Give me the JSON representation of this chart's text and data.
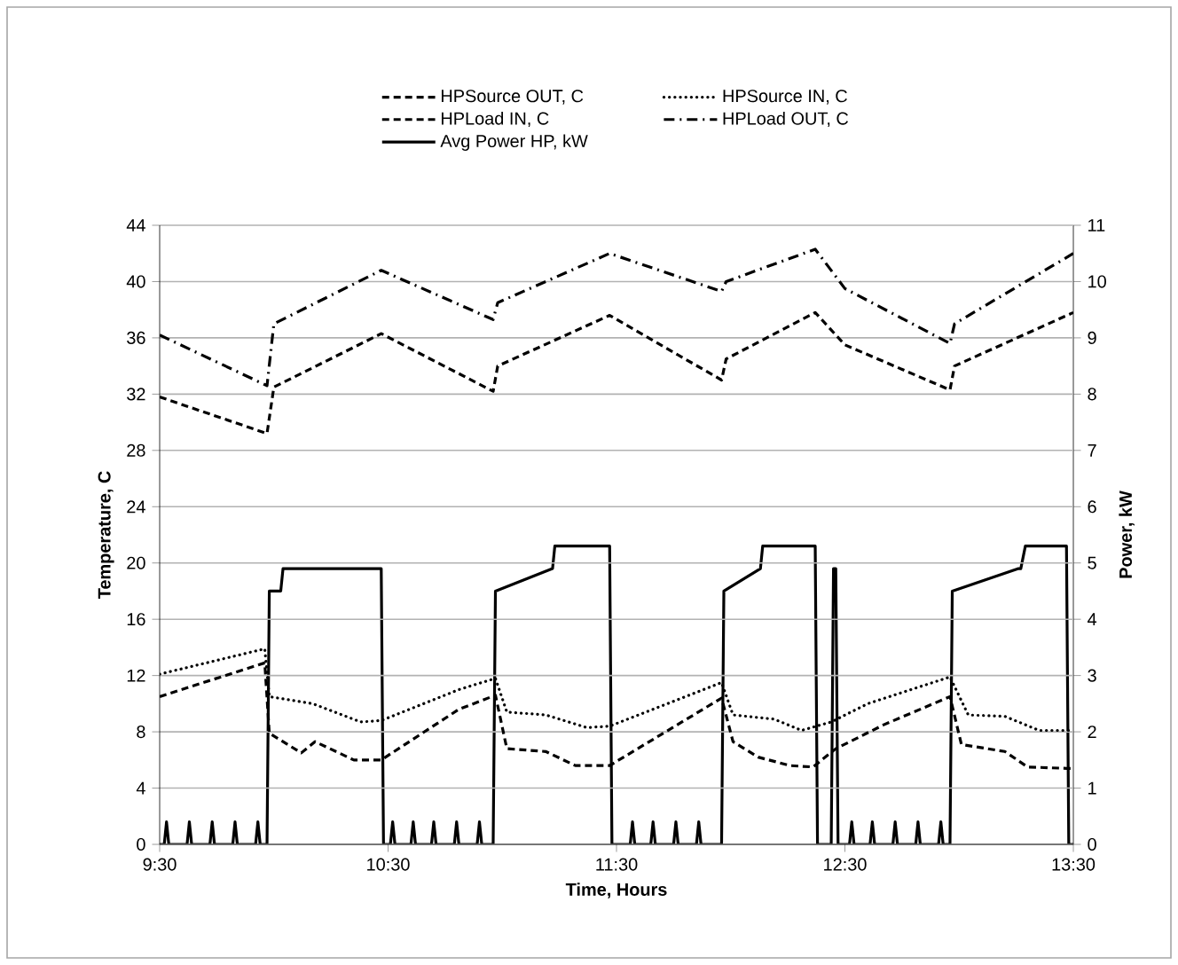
{
  "chart_data": {
    "type": "line",
    "xlabel": "Time, Hours",
    "ylabel": "Temperature, C",
    "y2label": "Power, kW",
    "xlim": [
      9.5,
      13.5
    ],
    "xticks": [
      {
        "value": 9.5,
        "label": "9:30"
      },
      {
        "value": 10.5,
        "label": "10:30"
      },
      {
        "value": 11.5,
        "label": "11:30"
      },
      {
        "value": 12.5,
        "label": "12:30"
      },
      {
        "value": 13.5,
        "label": "13:30"
      }
    ],
    "ylim": [
      0,
      44
    ],
    "yticks": [
      0,
      4,
      8,
      12,
      16,
      20,
      24,
      28,
      32,
      36,
      40,
      44
    ],
    "y2lim": [
      0,
      11
    ],
    "y2ticks": [
      0,
      1,
      2,
      3,
      4,
      5,
      6,
      7,
      8,
      9,
      10,
      11
    ],
    "grid": "y",
    "legend": "top",
    "marker": "none",
    "series": [
      {
        "name": "HPSource OUT, C",
        "color": "#000000",
        "line_style": "dashed",
        "x": [
          9.5,
          9.96,
          9.98,
          10.12,
          10.18,
          10.35,
          10.47,
          10.81,
          10.97,
          11.02,
          11.19,
          11.32,
          11.47,
          11.96,
          12.01,
          12.12,
          12.26,
          12.36,
          12.46,
          12.67,
          12.96,
          13.01,
          13.2,
          13.3,
          13.47,
          13.5
        ],
        "values": [
          10.5,
          12.9,
          7.9,
          6.5,
          7.3,
          6.0,
          6.0,
          9.6,
          10.6,
          6.8,
          6.6,
          5.6,
          5.6,
          10.4,
          7.3,
          6.2,
          5.6,
          5.5,
          6.8,
          8.5,
          10.5,
          7.1,
          6.6,
          5.5,
          5.4,
          5.4
        ]
      },
      {
        "name": "HPSource IN, C",
        "color": "#000000",
        "line_style": "dotted",
        "x": [
          9.5,
          9.96,
          9.98,
          10.17,
          10.38,
          10.47,
          10.81,
          10.97,
          11.02,
          11.19,
          11.37,
          11.47,
          11.96,
          12.01,
          12.19,
          12.31,
          12.44,
          12.6,
          12.96,
          13.04,
          13.2,
          13.35,
          13.49,
          13.5
        ],
        "values": [
          12.1,
          13.9,
          10.5,
          10.0,
          8.7,
          8.8,
          11.0,
          11.8,
          9.4,
          9.2,
          8.3,
          8.4,
          11.5,
          9.2,
          8.9,
          8.1,
          8.7,
          10.0,
          11.9,
          9.2,
          9.1,
          8.1,
          8.1,
          8.1
        ]
      },
      {
        "name": "HPLoad IN, C",
        "color": "#000000",
        "line_style": "dashed",
        "x": [
          9.5,
          9.97,
          10.0,
          10.47,
          10.96,
          10.98,
          11.47,
          11.96,
          11.98,
          12.37,
          12.5,
          12.96,
          12.98,
          13.5
        ],
        "values": [
          31.8,
          29.2,
          32.5,
          36.3,
          32.2,
          34.0,
          37.6,
          33.0,
          34.5,
          37.8,
          35.5,
          32.3,
          34.0,
          37.8
        ]
      },
      {
        "name": "HPLoad OUT, C",
        "color": "#000000",
        "line_style": "dashdot",
        "x": [
          9.5,
          9.97,
          10.0,
          10.47,
          10.96,
          10.98,
          11.47,
          11.96,
          11.98,
          12.37,
          12.5,
          12.96,
          12.98,
          13.5
        ],
        "values": [
          36.2,
          32.6,
          37.0,
          40.8,
          37.3,
          38.5,
          42.0,
          39.3,
          40.0,
          42.3,
          39.5,
          35.6,
          37.0,
          42.0
        ]
      },
      {
        "name": "Avg Power HP, kW",
        "color": "#000000",
        "line_style": "solid",
        "axis": "y2",
        "x": [
          9.5,
          9.52,
          9.53,
          9.54,
          9.62,
          9.63,
          9.64,
          9.72,
          9.73,
          9.74,
          9.82,
          9.83,
          9.84,
          9.92,
          9.93,
          9.94,
          9.97,
          9.98,
          10.03,
          10.04,
          10.47,
          10.48,
          10.51,
          10.52,
          10.53,
          10.6,
          10.61,
          10.62,
          10.69,
          10.7,
          10.71,
          10.79,
          10.8,
          10.81,
          10.89,
          10.9,
          10.91,
          10.96,
          10.97,
          11.22,
          11.23,
          11.47,
          11.48,
          11.56,
          11.57,
          11.58,
          11.65,
          11.66,
          11.67,
          11.75,
          11.76,
          11.77,
          11.85,
          11.86,
          11.87,
          11.96,
          11.97,
          12.13,
          12.14,
          12.37,
          12.38,
          12.44,
          12.45,
          12.46,
          12.47,
          12.52,
          12.53,
          12.54,
          12.61,
          12.62,
          12.63,
          12.71,
          12.72,
          12.73,
          12.81,
          12.82,
          12.83,
          12.91,
          12.92,
          12.93,
          12.96,
          12.97,
          13.26,
          13.27,
          13.29,
          13.3,
          13.47,
          13.48,
          13.5
        ],
        "values": [
          0,
          0,
          0.4,
          0,
          0,
          0.4,
          0,
          0,
          0.4,
          0,
          0,
          0.4,
          0,
          0,
          0.4,
          0,
          0,
          4.5,
          4.5,
          4.9,
          4.9,
          0,
          0,
          0.4,
          0,
          0,
          0.4,
          0,
          0,
          0.4,
          0,
          0,
          0.4,
          0,
          0,
          0.4,
          0,
          0,
          4.5,
          4.9,
          5.3,
          5.3,
          0,
          0,
          0.4,
          0,
          0,
          0.4,
          0,
          0,
          0.4,
          0,
          0,
          0.4,
          0,
          0,
          4.5,
          4.9,
          5.3,
          5.3,
          0,
          0,
          4.9,
          4.9,
          0,
          0,
          0.4,
          0,
          0,
          0.4,
          0,
          0,
          0.4,
          0,
          0,
          0.4,
          0,
          0,
          0.4,
          0,
          0,
          4.5,
          4.9,
          4.9,
          5.3,
          5.3,
          5.3,
          0,
          0
        ]
      }
    ]
  }
}
